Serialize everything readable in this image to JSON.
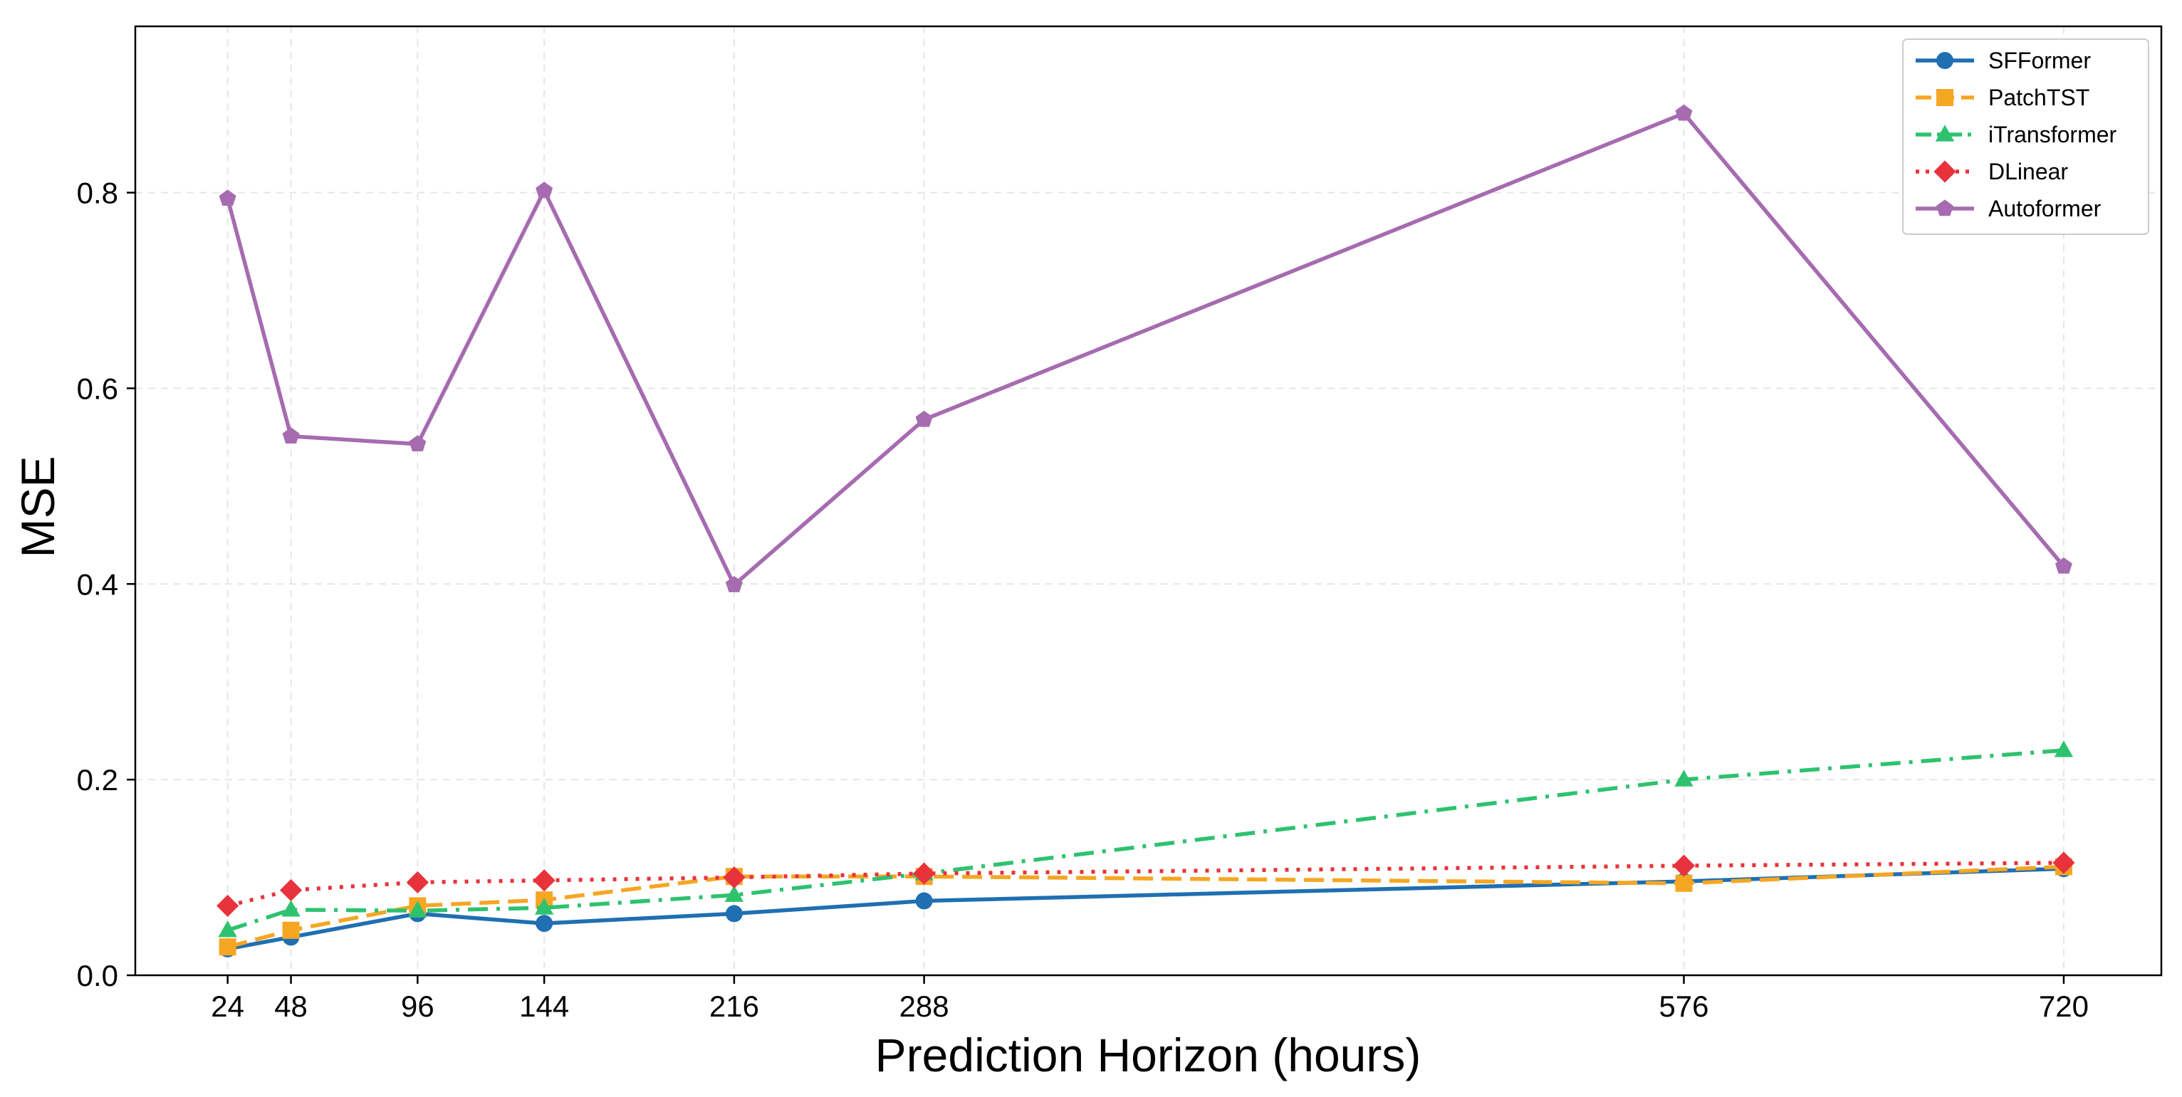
{
  "chart_data": {
    "type": "line",
    "xlabel": "Prediction Horizon (hours)",
    "ylabel": "MSE",
    "x": [
      24,
      48,
      96,
      144,
      216,
      288,
      576,
      720
    ],
    "xlim": [
      -11,
      757
    ],
    "ylim": [
      0,
      0.97
    ],
    "yticks": [
      0.0,
      0.2,
      0.4,
      0.6,
      0.8
    ],
    "ytick_labels": [
      "0.0",
      "0.2",
      "0.4",
      "0.6",
      "0.8"
    ],
    "xtick_labels": [
      "24",
      "48",
      "96",
      "144",
      "216",
      "288",
      "576",
      "720"
    ],
    "grid": true,
    "legend_position": "top-right",
    "series": [
      {
        "name": "SFFormer",
        "color": "#1f6fb2",
        "linestyle": "solid",
        "marker": "circle",
        "values": [
          0.027,
          0.039,
          0.063,
          0.053,
          0.063,
          0.076,
          0.096,
          0.109
        ]
      },
      {
        "name": "PatchTST",
        "color": "#f5a623",
        "linestyle": "dashed",
        "marker": "square",
        "values": [
          0.029,
          0.046,
          0.071,
          0.077,
          0.101,
          0.101,
          0.094,
          0.111
        ]
      },
      {
        "name": "iTransformer",
        "color": "#2ec26f",
        "linestyle": "dashdot",
        "marker": "triangle",
        "values": [
          0.046,
          0.067,
          0.066,
          0.069,
          0.082,
          0.104,
          0.2,
          0.23
        ]
      },
      {
        "name": "DLinear",
        "color": "#e8333c",
        "linestyle": "dotted",
        "marker": "diamond",
        "values": [
          0.071,
          0.087,
          0.095,
          0.097,
          0.1,
          0.104,
          0.112,
          0.115
        ]
      },
      {
        "name": "Autoformer",
        "color": "#a66bb0",
        "linestyle": "solid",
        "marker": "pentagon",
        "values": [
          0.794,
          0.551,
          0.543,
          0.802,
          0.399,
          0.568,
          0.881,
          0.418
        ]
      }
    ]
  }
}
